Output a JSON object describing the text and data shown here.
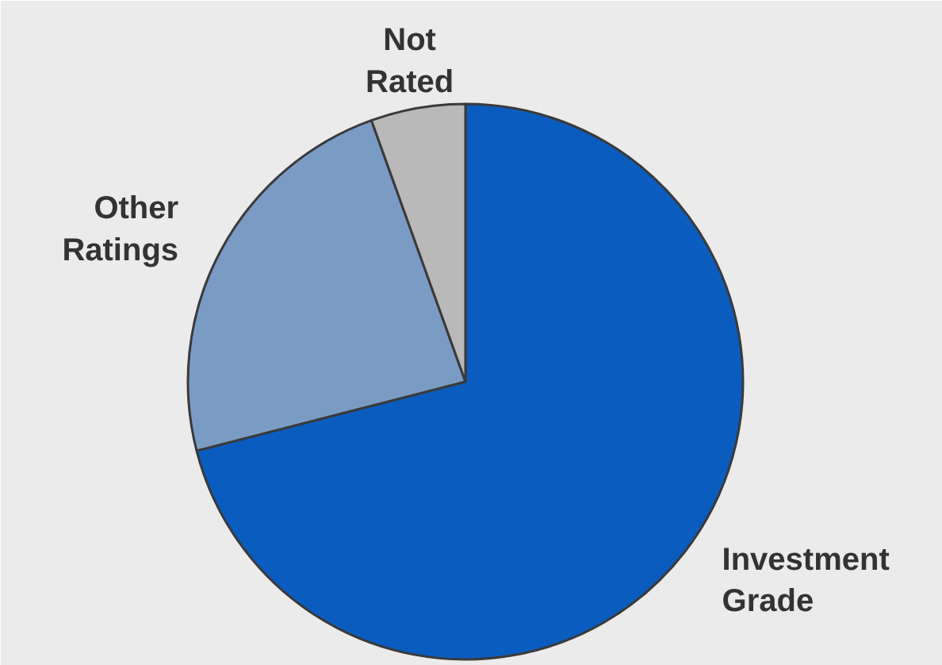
{
  "chart_data": {
    "type": "pie",
    "categories": [
      "Investment Grade",
      "Other Ratings",
      "Not Rated"
    ],
    "values": [
      71,
      23.5,
      5.5
    ],
    "colors": [
      "#0b5cbf",
      "#7a9cc4",
      "#b9b9b9"
    ]
  }
}
